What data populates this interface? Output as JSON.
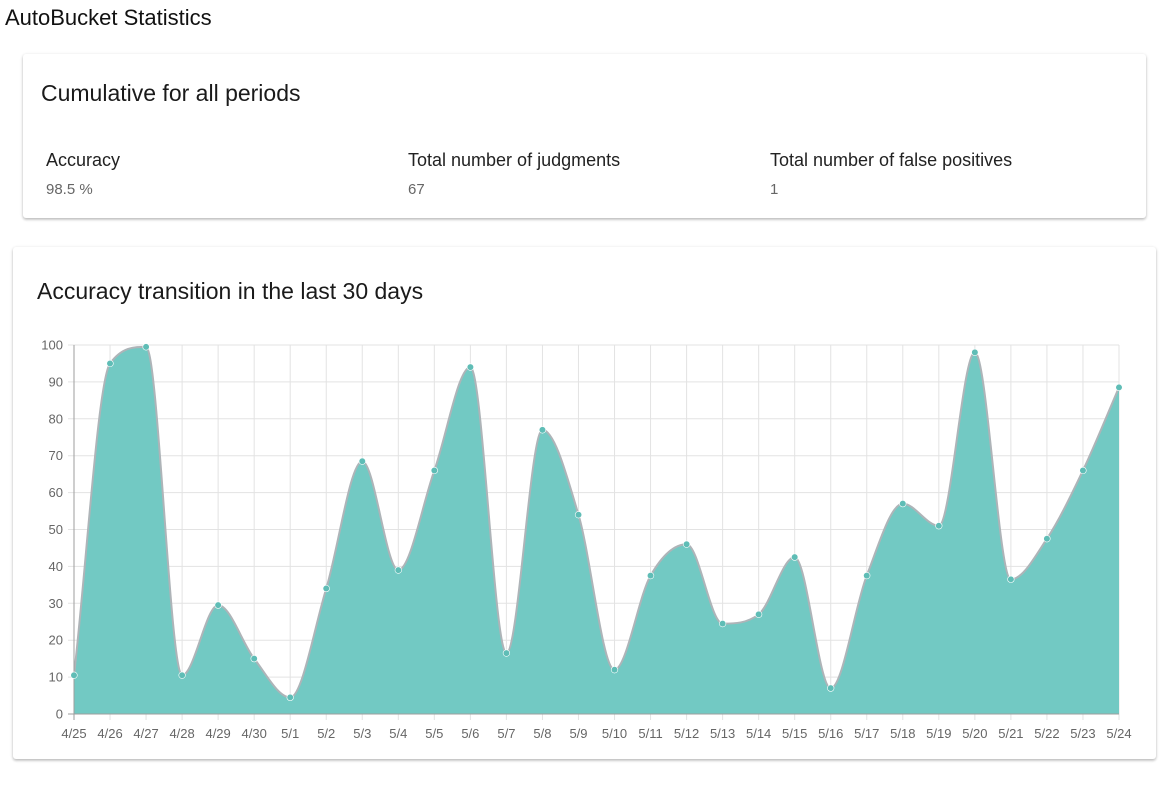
{
  "page": {
    "title": "AutoBucket Statistics"
  },
  "summary": {
    "title": "Cumulative for all periods",
    "stats": [
      {
        "label": "Accuracy",
        "value": "98.5 %"
      },
      {
        "label": "Total number of judgments",
        "value": "67"
      },
      {
        "label": "Total number of false positives",
        "value": "1"
      }
    ]
  },
  "chart_card": {
    "title": "Accuracy transition in the last 30 days"
  },
  "chart_data": {
    "type": "area",
    "title": "Accuracy transition in the last 30 days",
    "categories": [
      "4/25",
      "4/26",
      "4/27",
      "4/28",
      "4/29",
      "4/30",
      "5/1",
      "5/2",
      "5/3",
      "5/4",
      "5/5",
      "5/6",
      "5/7",
      "5/8",
      "5/9",
      "5/10",
      "5/11",
      "5/12",
      "5/13",
      "5/14",
      "5/15",
      "5/16",
      "5/17",
      "5/18",
      "5/19",
      "5/20",
      "5/21",
      "5/22",
      "5/23",
      "5/24"
    ],
    "series": [
      {
        "values": [
          10.5,
          95,
          99.5,
          10.5,
          29.5,
          15,
          4.5,
          34,
          68.5,
          39,
          66,
          94,
          16.5,
          77,
          54,
          12,
          37.5,
          46,
          24.5,
          27,
          42.5,
          7,
          37.5,
          57,
          51,
          98,
          36.5,
          47.5,
          66,
          88.5
        ]
      }
    ],
    "ylim": [
      0,
      100
    ],
    "yticks": [
      0,
      10,
      20,
      30,
      40,
      50,
      60,
      70,
      80,
      90,
      100
    ],
    "grid": true,
    "colors": {
      "fill": "#72c9c3",
      "line": "#aeb4b8",
      "point": "#5fbdb6"
    }
  }
}
